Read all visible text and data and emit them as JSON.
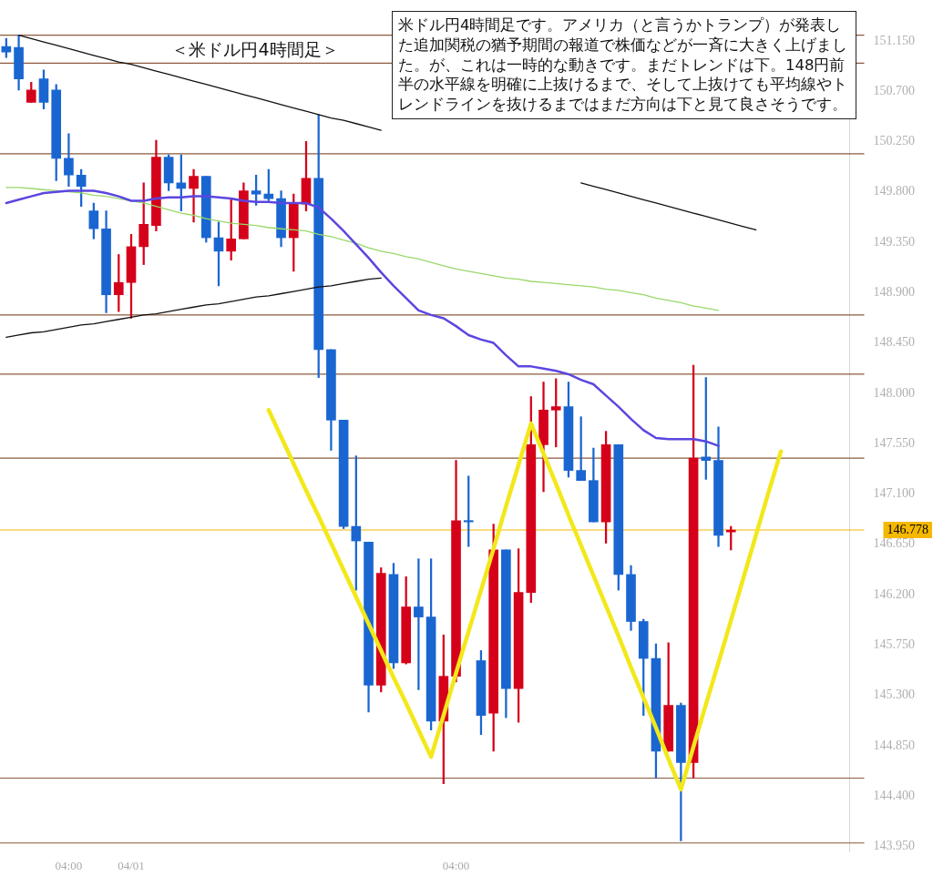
{
  "chart_data": {
    "type": "candlestick",
    "title": "＜米ドル円4時間足＞",
    "annotations": [
      "米ドル円4時間足です。アメリカ（と言うかトランプ）が発表した追加関税の猶予期間の報道で株価などが一斉に大きく上げました。が、これは一時的な動きです。まだトレンドは下。148円前半の水平線を明確に上抜けるまで、そして上抜けても平均線やトレンドラインを抜けるまではまだ方向は下と見て良さそうです。"
    ],
    "categories": [
      null,
      null,
      null,
      null,
      null,
      "04:00",
      null,
      null,
      null,
      null,
      "04/01",
      null,
      null,
      null,
      null,
      null,
      null,
      null,
      null,
      null,
      null,
      null,
      null,
      null,
      null,
      null,
      null,
      null,
      null,
      null,
      null,
      null,
      null,
      null,
      null,
      null,
      "04:00",
      null,
      null,
      null,
      null,
      null,
      null,
      null,
      null,
      null,
      null,
      null,
      null,
      null,
      null,
      null,
      null,
      null,
      null,
      null,
      null,
      null,
      null,
      null,
      null,
      null,
      null,
      null,
      null,
      null,
      null,
      null
    ],
    "ohlc": [
      [
        151.1,
        151.17,
        151.0,
        151.05
      ],
      [
        151.09,
        151.2,
        150.71,
        150.81
      ],
      [
        150.6,
        150.78,
        150.6,
        150.71
      ],
      [
        150.81,
        150.89,
        150.54,
        150.6
      ],
      [
        150.71,
        150.76,
        149.9,
        150.1
      ],
      [
        150.1,
        150.32,
        149.85,
        149.95
      ],
      [
        149.95,
        150.0,
        149.67,
        149.85
      ],
      [
        149.63,
        149.7,
        149.38,
        149.47
      ],
      [
        149.47,
        149.63,
        148.72,
        148.88
      ],
      [
        148.88,
        149.24,
        148.73,
        148.99
      ],
      [
        148.99,
        149.42,
        148.67,
        149.31
      ],
      [
        149.31,
        149.88,
        149.15,
        149.51
      ],
      [
        149.5,
        150.26,
        149.45,
        150.11
      ],
      [
        150.11,
        150.13,
        149.81,
        149.88
      ],
      [
        149.88,
        150.13,
        149.63,
        149.83
      ],
      [
        149.83,
        150.0,
        149.53,
        149.94
      ],
      [
        149.94,
        149.94,
        149.35,
        149.39
      ],
      [
        149.39,
        149.53,
        148.96,
        149.27
      ],
      [
        149.27,
        149.73,
        149.19,
        149.38
      ],
      [
        149.38,
        149.88,
        149.38,
        149.81
      ],
      [
        149.81,
        149.95,
        149.68,
        149.78
      ],
      [
        149.78,
        150.0,
        149.72,
        149.74
      ],
      [
        149.74,
        149.81,
        149.31,
        149.39
      ],
      [
        149.39,
        149.78,
        149.09,
        149.69
      ],
      [
        149.69,
        150.25,
        149.63,
        149.92
      ],
      [
        149.92,
        150.49,
        148.14,
        148.39
      ],
      [
        148.39,
        148.39,
        147.49,
        147.76
      ],
      [
        147.76,
        147.76,
        146.79,
        146.81
      ],
      [
        146.81,
        147.44,
        146.24,
        146.68
      ],
      [
        146.67,
        146.67,
        145.15,
        145.39
      ],
      [
        145.39,
        146.44,
        145.33,
        146.39
      ],
      [
        146.38,
        146.48,
        145.54,
        145.59
      ],
      [
        145.59,
        146.36,
        145.58,
        146.09
      ],
      [
        146.09,
        146.52,
        145.35,
        146.0
      ],
      [
        146.0,
        146.52,
        144.99,
        145.07
      ],
      [
        145.07,
        145.84,
        144.51,
        145.47
      ],
      [
        145.47,
        147.4,
        145.42,
        146.86
      ],
      [
        146.86,
        147.26,
        146.63,
        146.85
      ],
      [
        145.61,
        145.7,
        144.95,
        145.12
      ],
      [
        145.14,
        146.83,
        144.8,
        146.6
      ],
      [
        146.6,
        146.6,
        145.1,
        145.36
      ],
      [
        145.36,
        146.61,
        145.06,
        146.22
      ],
      [
        146.22,
        147.97,
        146.13,
        147.54
      ],
      [
        147.54,
        148.1,
        147.12,
        147.85
      ],
      [
        147.85,
        148.13,
        147.52,
        147.88
      ],
      [
        147.88,
        148.1,
        147.25,
        147.31
      ],
      [
        147.31,
        147.79,
        147.22,
        147.22
      ],
      [
        147.22,
        147.51,
        146.85,
        146.85
      ],
      [
        146.85,
        147.66,
        146.66,
        147.54
      ],
      [
        147.54,
        147.54,
        146.24,
        146.38
      ],
      [
        146.38,
        146.46,
        145.88,
        145.96
      ],
      [
        145.96,
        145.98,
        145.12,
        145.63
      ],
      [
        145.63,
        145.76,
        144.56,
        144.8
      ],
      [
        144.8,
        145.77,
        144.8,
        145.21
      ],
      [
        145.21,
        145.23,
        144.0,
        144.7
      ],
      [
        144.7,
        148.25,
        144.56,
        147.42
      ],
      [
        147.43,
        148.14,
        147.23,
        147.4
      ],
      [
        147.4,
        147.7,
        146.63,
        146.73
      ],
      [
        146.76,
        146.81,
        146.6,
        146.778
      ],
      null,
      null,
      null,
      null,
      null,
      null,
      null,
      null,
      null
    ],
    "colors": [
      "#1a66d1",
      "#1a66d1",
      "#d50019",
      "#1a66d1",
      "#1a66d1",
      "#1a66d1",
      "#1a66d1",
      "#1a66d1",
      "#1a66d1",
      "#d50019",
      "#d50019",
      "#d50019",
      "#d50019",
      "#1a66d1",
      "#1a66d1",
      "#d50019",
      "#1a66d1",
      "#1a66d1",
      "#d50019",
      "#d50019",
      "#1a66d1",
      "#1a66d1",
      "#1a66d1",
      "#d50019",
      "#d50019",
      "#1a66d1",
      "#1a66d1",
      "#1a66d1",
      "#1a66d1",
      "#1a66d1",
      "#d50019",
      "#1a66d1",
      "#d50019",
      "#1a66d1",
      "#1a66d1",
      "#d50019",
      "#d50019",
      "#1a66d1",
      "#1a66d1",
      "#d50019",
      "#1a66d1",
      "#d50019",
      "#d50019",
      "#d50019",
      "#d50019",
      "#1a66d1",
      "#1a66d1",
      "#1a66d1",
      "#d50019",
      "#1a66d1",
      "#1a66d1",
      "#1a66d1",
      "#1a66d1",
      "#d50019",
      "#1a66d1",
      "#d50019",
      "#1a66d1",
      "#1a66d1",
      "#d50019",
      null,
      null,
      null,
      null,
      null,
      null,
      null,
      null,
      null
    ],
    "series": [
      {
        "type": "line",
        "color": "#5b46e0",
        "values": [
          149.7,
          149.73,
          149.76,
          149.79,
          149.8,
          149.81,
          149.81,
          149.81,
          149.79,
          149.76,
          149.72,
          149.72,
          149.74,
          149.75,
          149.75,
          149.76,
          149.76,
          149.75,
          149.74,
          149.72,
          149.71,
          149.71,
          149.7,
          149.7,
          149.7,
          149.66,
          149.56,
          149.45,
          149.33,
          149.21,
          149.08,
          148.96,
          148.85,
          148.74,
          148.7,
          148.67,
          148.6,
          148.52,
          148.48,
          148.45,
          148.34,
          148.24,
          148.24,
          148.22,
          148.2,
          148.17,
          148.12,
          148.08,
          147.98,
          147.88,
          147.77,
          147.67,
          147.6,
          147.59,
          147.59,
          147.59,
          147.57,
          147.53,
          null,
          null,
          null,
          null,
          null,
          null,
          null,
          null,
          null,
          null
        ]
      },
      {
        "type": "line",
        "color": "#9ad86a",
        "values": [
          149.84,
          149.84,
          149.83,
          149.82,
          149.81,
          149.8,
          149.79,
          149.77,
          149.76,
          149.74,
          149.72,
          149.7,
          149.67,
          149.64,
          149.61,
          149.59,
          149.56,
          149.54,
          149.52,
          149.51,
          149.5,
          149.48,
          149.47,
          149.46,
          149.45,
          149.42,
          149.4,
          149.37,
          149.34,
          149.3,
          149.27,
          149.25,
          149.22,
          149.2,
          149.17,
          149.14,
          149.11,
          149.09,
          149.07,
          149.05,
          149.03,
          149.02,
          149.0,
          148.99,
          148.98,
          148.97,
          148.96,
          148.95,
          148.93,
          148.92,
          148.9,
          148.88,
          148.85,
          148.83,
          148.81,
          148.78,
          148.76,
          148.74,
          null,
          null,
          null,
          null,
          null,
          null,
          null,
          null,
          null,
          null
        ]
      },
      {
        "type": "line",
        "color": "#111111",
        "values": [
          null,
          151.2,
          151.17,
          151.14,
          151.11,
          151.08,
          151.05,
          151.02,
          150.99,
          150.96,
          150.94,
          150.91,
          150.88,
          150.85,
          150.82,
          150.79,
          150.76,
          150.73,
          150.7,
          150.67,
          150.64,
          150.61,
          150.58,
          150.55,
          150.52,
          150.49,
          150.46,
          150.44,
          150.41,
          150.38,
          150.35,
          null,
          null,
          null,
          null,
          null,
          null,
          null,
          null,
          null,
          null,
          null,
          null,
          null,
          null,
          null,
          149.88,
          149.85,
          149.82,
          149.79,
          149.76,
          149.73,
          149.7,
          149.67,
          149.64,
          149.61,
          149.58,
          149.55,
          149.52,
          149.49,
          149.46,
          null,
          null,
          null,
          null,
          null,
          null,
          null
        ]
      },
      {
        "type": "line",
        "color": "#111111",
        "values": [
          148.5,
          148.52,
          148.54,
          148.55,
          148.57,
          148.59,
          148.61,
          148.62,
          148.64,
          148.66,
          148.68,
          148.7,
          148.71,
          148.73,
          148.75,
          148.77,
          148.79,
          148.8,
          148.82,
          148.84,
          148.86,
          148.87,
          148.89,
          148.91,
          148.93,
          148.95,
          148.96,
          148.98,
          149.0,
          149.02,
          149.03,
          null,
          null,
          null,
          null,
          null,
          null,
          null,
          null,
          null,
          null,
          null,
          null,
          null,
          null,
          null,
          null,
          null,
          null,
          null,
          null,
          null,
          null,
          null,
          null,
          null,
          null,
          null,
          null,
          null,
          null,
          null,
          null,
          null,
          null,
          null,
          null,
          null
        ]
      },
      {
        "type": "line",
        "color": "#f2e81a",
        "values": [
          null,
          null,
          null,
          null,
          null,
          null,
          null,
          null,
          null,
          null,
          null,
          null,
          null,
          null,
          null,
          null,
          null,
          null,
          null,
          null,
          null,
          147.85,
          147.61,
          147.37,
          147.13,
          146.9,
          146.66,
          146.42,
          146.18,
          145.94,
          145.7,
          145.46,
          145.23,
          144.99,
          144.75,
          145.12,
          145.5,
          145.87,
          146.24,
          146.61,
          146.99,
          147.36,
          147.73,
          147.46,
          147.19,
          146.91,
          146.64,
          146.37,
          146.1,
          145.83,
          145.55,
          145.28,
          145.01,
          144.73,
          144.46,
          144.84,
          145.22,
          145.59,
          145.97,
          146.35,
          146.73,
          147.11,
          147.48,
          null,
          null,
          null,
          null,
          null
        ]
      }
    ],
    "ylim": [
      143.9,
      151.3
    ],
    "yticks": [
      {
        "value": 151.15,
        "label": "151.150"
      },
      {
        "value": 150.7,
        "label": "150.700"
      },
      {
        "value": 150.25,
        "label": "150.250"
      },
      {
        "value": 149.8,
        "label": "149.800"
      },
      {
        "value": 149.35,
        "label": "149.350"
      },
      {
        "value": 148.9,
        "label": "148.900"
      },
      {
        "value": 148.45,
        "label": "148.450"
      },
      {
        "value": 148.0,
        "label": "148.000"
      },
      {
        "value": 147.55,
        "label": "147.550"
      },
      {
        "value": 147.1,
        "label": "147.100"
      },
      {
        "value": 146.65,
        "label": "146.650"
      },
      {
        "value": 146.2,
        "label": "146.200"
      },
      {
        "value": 145.75,
        "label": "145.750"
      },
      {
        "value": 145.3,
        "label": "145.300"
      },
      {
        "value": 144.85,
        "label": "144.850"
      },
      {
        "value": 144.4,
        "label": "144.400"
      },
      {
        "value": 143.95,
        "label": "143.950"
      }
    ],
    "ref_lines": [
      {
        "axis": "y",
        "value": 151.2,
        "color": "#8b5a3c"
      },
      {
        "axis": "y",
        "value": 150.95,
        "color": "#8b5a3c"
      },
      {
        "axis": "y",
        "value": 150.14,
        "color": "#8b5a3c"
      },
      {
        "axis": "y",
        "value": 148.7,
        "color": "#8b5a3c"
      },
      {
        "axis": "y",
        "value": 148.17,
        "color": "#8b5a3c"
      },
      {
        "axis": "y",
        "value": 147.42,
        "color": "#8b5a3c"
      },
      {
        "axis": "y",
        "value": 144.56,
        "color": "#8b5a3c"
      },
      {
        "axis": "y",
        "value": 143.98,
        "color": "#8b5a3c"
      },
      {
        "axis": "y",
        "value": 146.778,
        "label": "146.778",
        "color": "#f5b800"
      }
    ]
  }
}
